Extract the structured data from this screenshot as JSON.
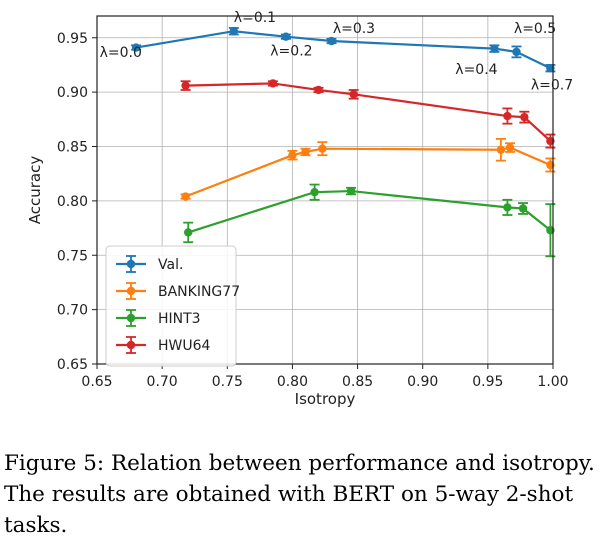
{
  "chart_data": {
    "type": "line",
    "xlabel": "Isotropy",
    "ylabel": "Accuracy",
    "xlim": [
      0.65,
      1.0
    ],
    "ylim": [
      0.65,
      0.97
    ],
    "xticks": [
      "0.65",
      "0.70",
      "0.75",
      "0.80",
      "0.85",
      "0.90",
      "0.95",
      "1.00"
    ],
    "yticks": [
      "0.65",
      "0.70",
      "0.75",
      "0.80",
      "0.85",
      "0.90",
      "0.95"
    ],
    "grid": true,
    "legend_position": "lower-left",
    "series": [
      {
        "name": "Val.",
        "color": "#1f77b4",
        "x": [
          0.68,
          0.755,
          0.795,
          0.83,
          0.955,
          0.972,
          0.998
        ],
        "y": [
          0.941,
          0.956,
          0.951,
          0.947,
          0.94,
          0.937,
          0.922
        ],
        "err": [
          0.002,
          0.003,
          0.002,
          0.002,
          0.003,
          0.005,
          0.003
        ]
      },
      {
        "name": "BANKING77",
        "color": "#ff7f0e",
        "x": [
          0.718,
          0.8,
          0.81,
          0.823,
          0.96,
          0.967,
          0.998
        ],
        "y": [
          0.804,
          0.842,
          0.845,
          0.848,
          0.847,
          0.849,
          0.833
        ],
        "err": [
          0.002,
          0.004,
          0.003,
          0.006,
          0.01,
          0.004,
          0.006
        ]
      },
      {
        "name": "HINT3",
        "color": "#2ca02c",
        "x": [
          0.72,
          0.817,
          0.845,
          0.965,
          0.977,
          0.998
        ],
        "y": [
          0.771,
          0.808,
          0.809,
          0.794,
          0.793,
          0.773
        ],
        "err": [
          0.009,
          0.007,
          0.003,
          0.007,
          0.005,
          0.024
        ]
      },
      {
        "name": "HWU64",
        "color": "#d62728",
        "x": [
          0.718,
          0.785,
          0.82,
          0.847,
          0.965,
          0.978,
          0.998
        ],
        "y": [
          0.906,
          0.908,
          0.902,
          0.898,
          0.878,
          0.877,
          0.855
        ],
        "err": [
          0.004,
          0.002,
          0.002,
          0.004,
          0.007,
          0.005,
          0.006
        ]
      }
    ],
    "annotations": [
      {
        "text": "λ=0.0",
        "x": 0.652,
        "y": 0.9325,
        "anchor": "start"
      },
      {
        "text": "λ=0.1",
        "x": 0.755,
        "y": 0.9645,
        "anchor": "start"
      },
      {
        "text": "λ=0.2",
        "x": 0.783,
        "y": 0.9335,
        "anchor": "start"
      },
      {
        "text": "λ=0.3",
        "x": 0.831,
        "y": 0.9545,
        "anchor": "start"
      },
      {
        "text": "λ=0.4",
        "x": 0.925,
        "y": 0.9165,
        "anchor": "start"
      },
      {
        "text": "λ=0.5",
        "x": 0.97,
        "y": 0.9545,
        "anchor": "start"
      },
      {
        "text": "λ=0.7",
        "x": 0.983,
        "y": 0.9025,
        "anchor": "start"
      }
    ]
  },
  "caption": "Figure 5: Relation between performance and isotropy. The results are obtained with BERT on 5-way 2-shot tasks."
}
